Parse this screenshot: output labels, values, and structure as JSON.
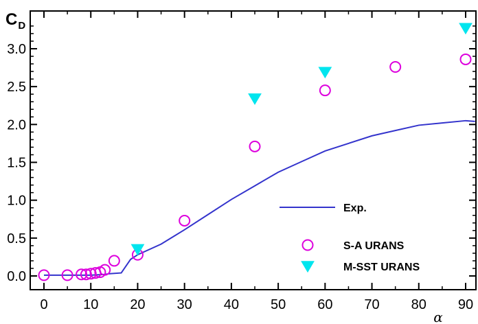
{
  "chart_data": {
    "type": "scatter",
    "title": "",
    "xlabel": "α",
    "ylabel_main": "C",
    "ylabel_sub": "D",
    "xlim": [
      0,
      90
    ],
    "ylim": [
      -0.1,
      3.42
    ],
    "xticks": [
      0,
      10,
      20,
      30,
      40,
      50,
      60,
      70,
      80,
      90
    ],
    "xtick_labels": [
      "0",
      "10",
      "20",
      "30",
      "40",
      "50",
      "60",
      "70",
      "80",
      "90"
    ],
    "yticks": [
      0.0,
      0.5,
      1.0,
      1.5,
      2.0,
      2.5,
      3.0
    ],
    "ytick_labels": [
      "0.0",
      "0.5",
      "1.0",
      "1.5",
      "2.0",
      "2.5",
      "3.0"
    ],
    "grid": false,
    "legend_position": "bottom-right",
    "series": [
      {
        "name": "Exp.",
        "kind": "line",
        "color": "#3333cc",
        "points": [
          [
            0,
            0.01
          ],
          [
            5,
            0.01
          ],
          [
            10,
            0.01
          ],
          [
            13,
            0.02
          ],
          [
            14,
            0.03
          ],
          [
            16.5,
            0.04
          ],
          [
            18.5,
            0.22
          ],
          [
            20,
            0.28
          ],
          [
            25,
            0.42
          ],
          [
            30,
            0.61
          ],
          [
            35,
            0.81
          ],
          [
            40,
            1.01
          ],
          [
            45,
            1.19
          ],
          [
            50,
            1.37
          ],
          [
            55,
            1.51
          ],
          [
            60,
            1.65
          ],
          [
            65,
            1.75
          ],
          [
            70,
            1.85
          ],
          [
            75,
            1.92
          ],
          [
            80,
            1.99
          ],
          [
            85,
            2.02
          ],
          [
            90,
            2.05
          ],
          [
            92,
            2.04
          ]
        ]
      },
      {
        "name": "S-A  URANS",
        "kind": "circle",
        "color": "#dd00dd",
        "points": [
          [
            0,
            0.01
          ],
          [
            5,
            0.01
          ],
          [
            8,
            0.02
          ],
          [
            9,
            0.02
          ],
          [
            10,
            0.03
          ],
          [
            11,
            0.04
          ],
          [
            12,
            0.05
          ],
          [
            13,
            0.08
          ],
          [
            15,
            0.2
          ],
          [
            20,
            0.28
          ],
          [
            30,
            0.73
          ],
          [
            45,
            1.71
          ],
          [
            60,
            2.45
          ],
          [
            75,
            2.76
          ],
          [
            90,
            2.86
          ]
        ]
      },
      {
        "name": "M-SST  URANS",
        "kind": "triangle",
        "color": "#00e5ee",
        "points": [
          [
            20,
            0.35
          ],
          [
            45,
            2.34
          ],
          [
            60,
            2.69
          ],
          [
            90,
            3.27
          ]
        ]
      }
    ]
  }
}
